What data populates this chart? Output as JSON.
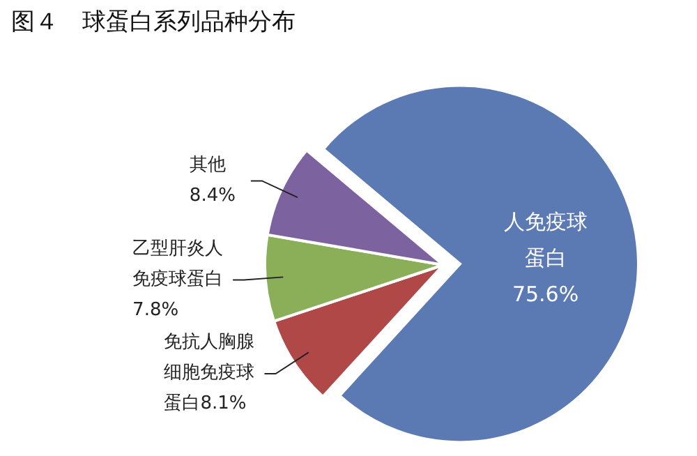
{
  "chart_data": {
    "type": "pie",
    "title": "图４　球蛋白系列品种分布",
    "categories": [
      "人免疫球蛋白",
      "免抗人胸腺细胞免疫球蛋白",
      "乙型肝炎人免疫球蛋白",
      "其他"
    ],
    "values": [
      75.6,
      8.1,
      7.8,
      8.4
    ],
    "value_labels": [
      "75.6%",
      "8.1%",
      "7.8%",
      "8.4%"
    ],
    "colors": [
      "#5b79b3",
      "#b04848",
      "#8aaf58",
      "#7d62a0"
    ]
  }
}
